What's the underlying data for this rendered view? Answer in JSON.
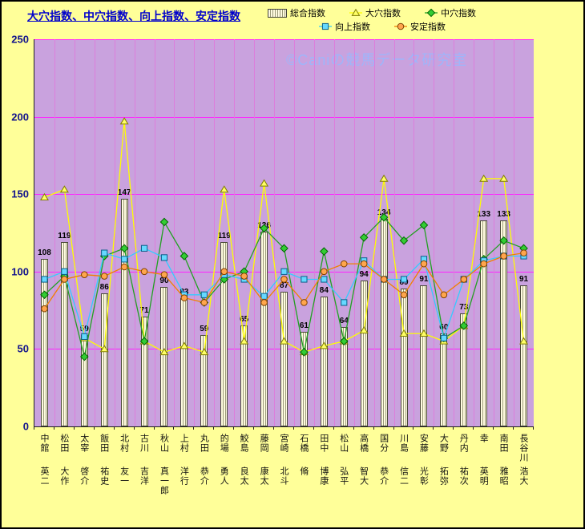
{
  "title": "大穴指数、中穴指数、向上指数、安定指数",
  "watermark": "©Caniの競馬データ研究室",
  "legend": [
    {
      "label": "総合指数",
      "icon": "bar"
    },
    {
      "label": "大穴指数",
      "icon": "triangle"
    },
    {
      "label": "中穴指数",
      "icon": "diamond"
    },
    {
      "label": "向上指数",
      "icon": "square"
    },
    {
      "label": "安定指数",
      "icon": "circle"
    }
  ],
  "colors": {
    "background": "#FFFF99",
    "plot_bg": "#C9A2DE",
    "grid_h": "#FF22FF",
    "grid_v": "#DC7EDC",
    "title": "#0000CC",
    "watermark": "#96B9FF",
    "ytick_label": "#14148C",
    "bar_border": "#4A4A38",
    "bar_light": "#FFFBE0",
    "bar_dark": "#9A9A78"
  },
  "chart_data": {
    "type": "bar",
    "title": "大穴指数、中穴指数、向上指数、安定指数",
    "xlabel": "",
    "ylabel": "",
    "ylim": [
      0,
      250
    ],
    "yticks": [
      0,
      50,
      100,
      150,
      200,
      250
    ],
    "grid": true,
    "legend_position": "top",
    "categories": [
      [
        "中館",
        "英二"
      ],
      [
        "松田",
        "大作"
      ],
      [
        "太宰",
        "啓介"
      ],
      [
        "飯田",
        "祐史"
      ],
      [
        "北村",
        "友一"
      ],
      [
        "古川",
        "吉洋"
      ],
      [
        "秋山",
        "真一郎"
      ],
      [
        "上村",
        "洋行"
      ],
      [
        "丸田",
        "恭介"
      ],
      [
        "的場",
        "勇人"
      ],
      [
        "鮫島",
        "良太"
      ],
      [
        "藤岡",
        "康太"
      ],
      [
        "宮崎",
        "北斗"
      ],
      [
        "石橋",
        "脩"
      ],
      [
        "田中",
        "博康"
      ],
      [
        "松山",
        "弘平"
      ],
      [
        "高橋",
        "智大"
      ],
      [
        "国分",
        "恭介"
      ],
      [
        "川島",
        "信二"
      ],
      [
        "安藤",
        "光彰"
      ],
      [
        "大野",
        "拓弥"
      ],
      [
        "丹内",
        "祐次"
      ],
      [
        "幸",
        "英明"
      ],
      [
        "南田",
        "雅昭"
      ],
      [
        "長谷川",
        "浩大"
      ]
    ],
    "bar_series": {
      "name": "総合指数",
      "values": [
        108,
        119,
        59,
        86,
        147,
        71,
        90,
        83,
        59,
        119,
        65,
        126,
        87,
        61,
        84,
        64,
        94,
        134,
        89,
        91,
        60,
        73,
        133,
        133,
        91
      ]
    },
    "line_series": [
      {
        "name": "大穴指数",
        "marker": "triangle",
        "line_color": "#FFFF00",
        "marker_fill": "#FFFF66",
        "marker_stroke": "#807C00",
        "values": [
          148,
          153,
          57,
          50,
          197,
          55,
          48,
          52,
          48,
          153,
          55,
          157,
          55,
          48,
          52,
          55,
          62,
          160,
          60,
          60,
          55,
          65,
          160,
          160,
          55
        ]
      },
      {
        "name": "中穴指数",
        "marker": "diamond",
        "line_color": "#22A022",
        "marker_fill": "#33CC33",
        "marker_stroke": "#006600",
        "values": [
          85,
          97,
          45,
          110,
          115,
          55,
          132,
          110,
          80,
          95,
          100,
          128,
          115,
          48,
          113,
          55,
          122,
          135,
          120,
          130,
          57,
          65,
          108,
          120,
          115
        ]
      },
      {
        "name": "向上指数",
        "marker": "square",
        "line_color": "#33CCFF",
        "marker_fill": "#66D9FF",
        "marker_stroke": "#0B5E8A",
        "values": [
          95,
          100,
          58,
          112,
          108,
          115,
          109,
          85,
          85,
          98,
          95,
          84,
          100,
          95,
          95,
          80,
          107,
          95,
          95,
          108,
          57,
          95,
          107,
          110,
          110
        ]
      },
      {
        "name": "安定指数",
        "marker": "circle",
        "line_color": "#F08000",
        "marker_fill": "#FFA64D",
        "marker_stroke": "#804000",
        "values": [
          76,
          95,
          98,
          97,
          103,
          100,
          98,
          83,
          80,
          100,
          97,
          80,
          95,
          80,
          100,
          105,
          105,
          95,
          85,
          105,
          85,
          95,
          105,
          110,
          112
        ]
      }
    ]
  }
}
